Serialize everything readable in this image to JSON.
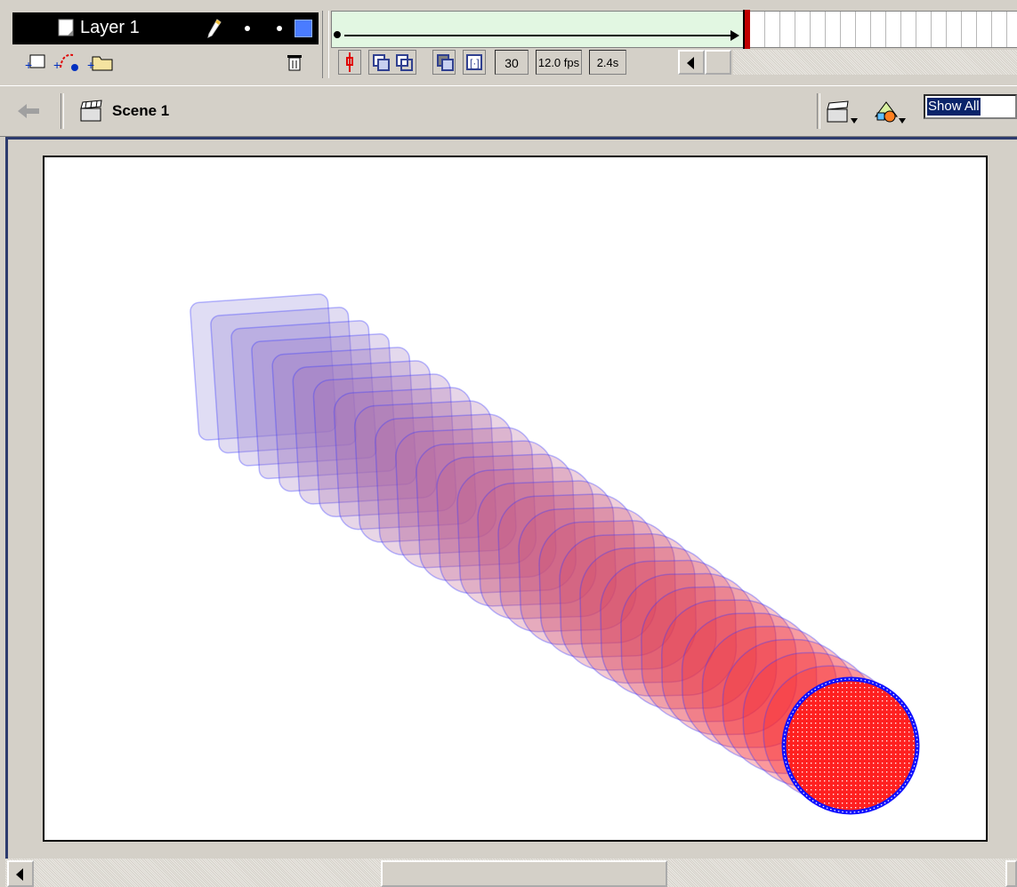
{
  "timeline": {
    "layer_name": "Layer 1",
    "current_frame": "30",
    "frame_rate": "12.0 fps",
    "elapsed_time": "2.4s"
  },
  "edit_bar": {
    "scene_label": "Scene 1",
    "zoom_value": "Show All"
  },
  "stage": {
    "onion_skin_frames": 30,
    "start_shape": "rounded-square",
    "end_shape": "circle",
    "start_color": "#8f86d8",
    "end_color": "#ff2020",
    "stroke_color": "#3a3aff"
  },
  "colors": {
    "window_bg": "#d4d0c8",
    "timeline_layer_bg": "#000000",
    "tween_span": "#e2f7e2",
    "playhead": "#c00000",
    "selection": "#0a246a"
  }
}
